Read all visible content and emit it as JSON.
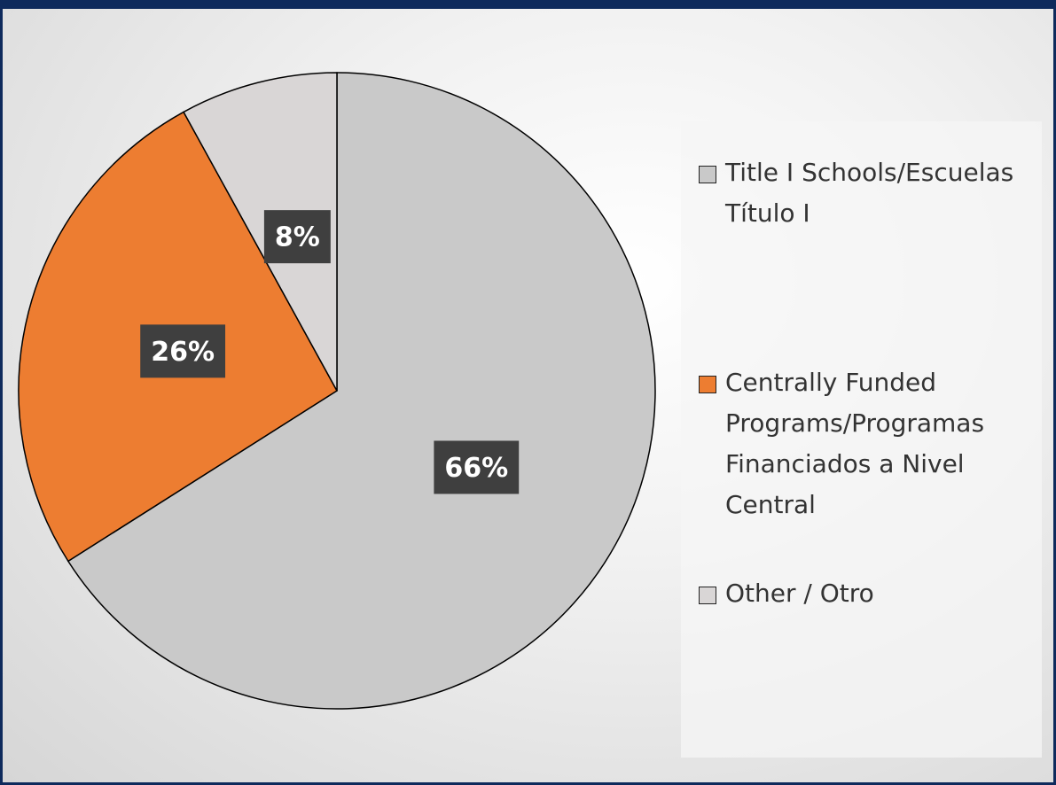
{
  "chart_data": {
    "type": "pie",
    "categories": [
      "Title I Schools/Escuelas Título I",
      "Centrally Funded Programs/Programas Financiados a Nivel Central",
      "Other  / Otro"
    ],
    "values": [
      66,
      26,
      8
    ],
    "value_labels": [
      "66%",
      "26%",
      "8%"
    ],
    "colors": [
      "#c9c9c9",
      "#ed7d31",
      "#d9d6d6"
    ],
    "legend": "right"
  }
}
